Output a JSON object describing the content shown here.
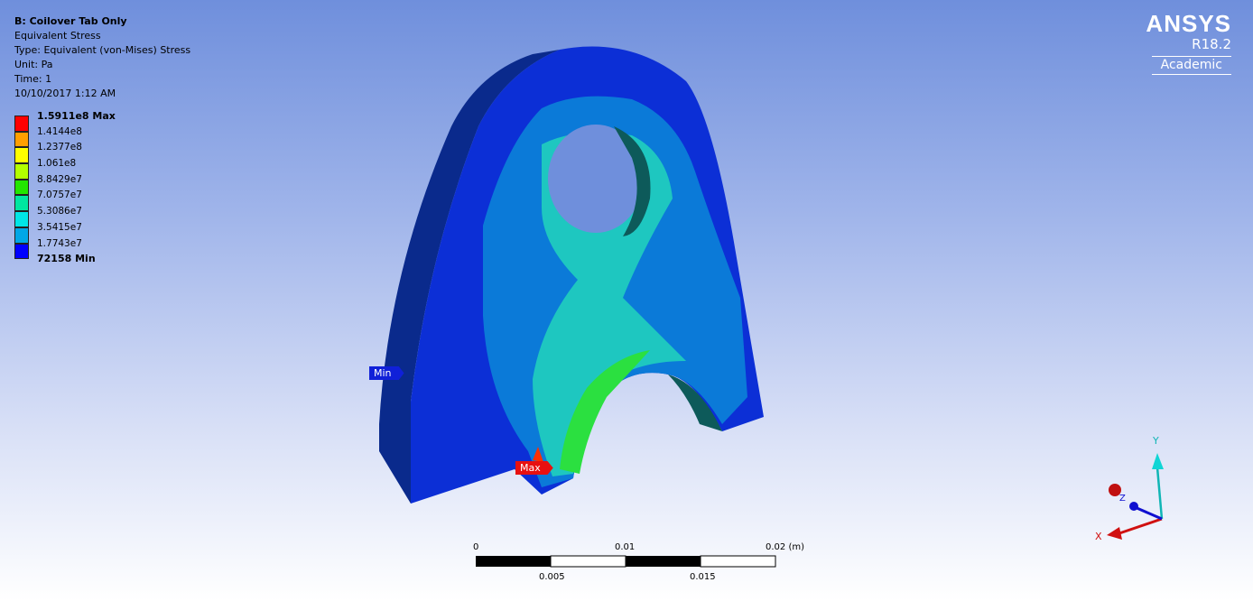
{
  "info": {
    "title": "B: Coilover Tab Only",
    "result": "Equivalent Stress",
    "type": "Type: Equivalent (von-Mises) Stress",
    "unit": "Unit: Pa",
    "time": "Time: 1",
    "date": "10/10/2017 1:12 AM"
  },
  "legend": {
    "max_label": "1.5911e8 Max",
    "min_label": "72158 Min",
    "levels": [
      "1.4144e8",
      "1.2377e8",
      "1.061e8",
      "8.8429e7",
      "7.0757e7",
      "5.3086e7",
      "3.5415e7",
      "1.7743e7"
    ],
    "colors": [
      "#ff0000",
      "#ff9f00",
      "#ffff00",
      "#b3ff00",
      "#22e600",
      "#00e6a0",
      "#00e6e6",
      "#00a7e6",
      "#0000ff"
    ]
  },
  "logo": {
    "brand": "ANSYS",
    "version": "R18.2",
    "edition": "Academic"
  },
  "probes": {
    "min": "Min",
    "max": "Max"
  },
  "scale_bar": {
    "top_ticks": [
      "0",
      "0.01",
      "0.02 (m)"
    ],
    "bottom_ticks": [
      "0.005",
      "0.015"
    ]
  },
  "triad": {
    "x": "X",
    "y": "Y",
    "z": "Z"
  }
}
